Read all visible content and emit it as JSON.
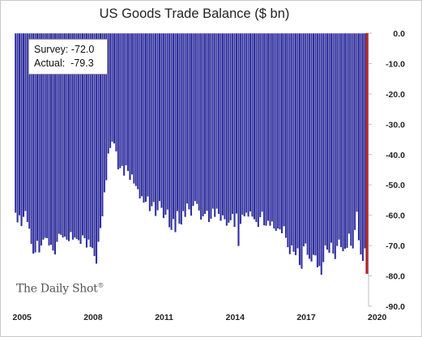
{
  "chart_data": {
    "type": "bar",
    "title": "US Goods Trade Balance ($ bn)",
    "ylim": [
      -90,
      0
    ],
    "yticks": [
      "0.0",
      "-10.0",
      "-20.0",
      "-30.0",
      "-40.0",
      "-50.0",
      "-60.0",
      "-70.0",
      "-80.0",
      "-90.0"
    ],
    "xticks": [
      "2005",
      "2008",
      "2011",
      "2014",
      "2017",
      "2020"
    ],
    "grid": false,
    "colors": {
      "bars": "#2e2e9e",
      "bar_edge": "#ffffff",
      "latest_bar": "#b22222",
      "axis": "#bfbfbf"
    },
    "values": [
      -59.2,
      -62.4,
      -60.1,
      -63.6,
      -60.6,
      -58.7,
      -62.3,
      -64.5,
      -69.5,
      -72.7,
      -72.3,
      -68.5,
      -72.3,
      -70.0,
      -68.1,
      -67.5,
      -67.6,
      -70.0,
      -69.8,
      -71.7,
      -73.0,
      -68.8,
      -66.2,
      -66.5,
      -67.4,
      -67.1,
      -68.1,
      -68.6,
      -65.6,
      -68.1,
      -67.4,
      -67.9,
      -68.3,
      -69.5,
      -66.7,
      -67.6,
      -70.7,
      -68.1,
      -70.5,
      -70.9,
      -73.5,
      -76.0,
      -68.8,
      -64.3,
      -60.4,
      -52.5,
      -48.5,
      -39.7,
      -37.9,
      -35.8,
      -36.4,
      -39.0,
      -44.9,
      -44.5,
      -43.8,
      -47.0,
      -43.6,
      -45.5,
      -48.4,
      -46.6,
      -49.6,
      -50.4,
      -51.5,
      -54.5,
      -53.8,
      -55.9,
      -55.6,
      -53.9,
      -58.7,
      -57.1,
      -55.7,
      -60.3,
      -58.4,
      -55.4,
      -57.6,
      -61.0,
      -59.9,
      -58.2,
      -64.0,
      -64.9,
      -61.3,
      -65.6,
      -58.7,
      -62.8,
      -63.1,
      -58.7,
      -60.6,
      -56.2,
      -58.1,
      -60.2,
      -57.0,
      -55.4,
      -56.3,
      -58.5,
      -61.5,
      -60.4,
      -59.6,
      -58.6,
      -62.3,
      -61.2,
      -57.9,
      -60.6,
      -57.9,
      -59.6,
      -61.9,
      -60.1,
      -61.4,
      -63.5,
      -62.5,
      -61.7,
      -59.6,
      -63.9,
      -59.5,
      -70.2,
      -62.9,
      -59.9,
      -60.4,
      -59.2,
      -60.5,
      -58.8,
      -60.5,
      -61.4,
      -62.3,
      -63.9,
      -60.7,
      -58.9,
      -63.4,
      -63.5,
      -61.9,
      -63.5,
      -62.1,
      -64.4,
      -65.2,
      -64.4,
      -64.7,
      -66.0,
      -63.7,
      -67.5,
      -70.6,
      -72.9,
      -70.0,
      -72.1,
      -73.2,
      -71.0,
      -76.5,
      -77.7,
      -70.3,
      -69.4,
      -73.1,
      -74.4,
      -75.3,
      -73.1,
      -73.3,
      -77.2,
      -76.8,
      -79.7,
      -75.5,
      -70.0,
      -71.4,
      -72.4,
      -69.1,
      -72.7,
      -74.5,
      -70.2,
      -68.1,
      -70.6,
      -71.9,
      -71.1,
      -70.8,
      -66.1,
      -70.1,
      -71.0,
      -64.9,
      -58.9,
      -68.3,
      -73.0,
      -75.1,
      -71.0,
      -79.3
    ],
    "latest": {
      "survey": -72.0,
      "actual": -79.3
    }
  },
  "annotation": {
    "survey_line": "Survey: -72.0",
    "actual_line": "Actual:  -79.3"
  },
  "source_logo": "The Daily Shot"
}
